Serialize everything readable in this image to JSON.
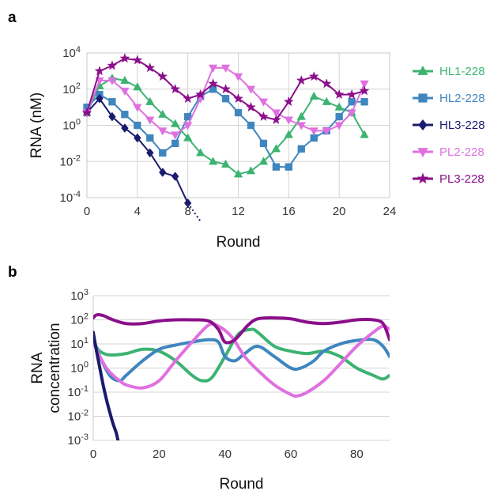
{
  "colors": {
    "HL1-228": "#3cb371",
    "HL2-228": "#3f86bf",
    "HL3-228": "#1a1a6e",
    "PL2-228": "#e070e0",
    "PL3-228": "#8b0f8b"
  },
  "chart_data": [
    {
      "panel": "a",
      "type": "line",
      "xlabel": "Round",
      "ylabel": "RNA (nM)",
      "xlim": [
        0,
        24
      ],
      "x_ticks": [
        "0",
        "4",
        "8",
        "12",
        "16",
        "20",
        "24"
      ],
      "y_scale": "log",
      "ylim": [
        0.0001,
        10000
      ],
      "y_ticks": [
        {
          "base": "10",
          "exp": "4"
        },
        {
          "base": "10",
          "exp": "2"
        },
        {
          "base": "10",
          "exp": "0"
        },
        {
          "base": "10",
          "exp": "-2"
        },
        {
          "base": "10",
          "exp": "-4"
        }
      ],
      "grid": true,
      "legend_position": "right",
      "series": [
        {
          "name": "HL1-228",
          "marker": "triangle-up",
          "x": [
            0,
            1,
            2,
            3,
            4,
            5,
            6,
            7,
            8,
            9,
            10,
            11,
            12,
            13,
            14,
            15,
            16,
            17,
            18,
            19,
            20,
            21,
            22
          ],
          "y": [
            5,
            150,
            400,
            300,
            130,
            20,
            4,
            1.2,
            0.2,
            0.03,
            0.01,
            0.007,
            0.002,
            0.003,
            0.01,
            0.05,
            0.3,
            3,
            40,
            20,
            10,
            5,
            0.3
          ]
        },
        {
          "name": "HL2-228",
          "marker": "square",
          "x": [
            0,
            1,
            2,
            3,
            4,
            5,
            6,
            7,
            8,
            9,
            10,
            11,
            12,
            13,
            14,
            15,
            16,
            17,
            18,
            19,
            20,
            21,
            22
          ],
          "y": [
            10,
            50,
            20,
            4,
            1,
            0.2,
            0.03,
            0.1,
            3,
            40,
            100,
            30,
            5,
            1,
            0.1,
            0.005,
            0.005,
            0.05,
            0.2,
            0.5,
            3,
            20,
            20
          ]
        },
        {
          "name": "HL3-228",
          "marker": "diamond",
          "x": [
            0,
            1,
            2,
            3,
            4,
            5,
            6,
            7,
            8
          ],
          "y": [
            5,
            30,
            3,
            0.7,
            0.2,
            0.03,
            0.0025,
            0.0015,
            5e-05
          ],
          "extrapolate_to": {
            "x": 9,
            "y": 5e-06
          }
        },
        {
          "name": "PL2-228",
          "marker": "triangle-down",
          "x": [
            0,
            1,
            2,
            3,
            4,
            5,
            6,
            7,
            8,
            9,
            10,
            11,
            12,
            13,
            14,
            15,
            16,
            17,
            18,
            19,
            20,
            21,
            22
          ],
          "y": [
            5,
            300,
            300,
            80,
            10,
            2,
            0.5,
            0.3,
            1,
            30,
            1500,
            1500,
            500,
            100,
            20,
            5,
            2,
            1,
            0.5,
            0.5,
            1,
            5,
            200
          ]
        },
        {
          "name": "PL3-228",
          "marker": "star",
          "x": [
            0,
            1,
            2,
            3,
            4,
            5,
            6,
            7,
            8,
            9,
            10,
            11,
            12,
            13,
            14,
            15,
            16,
            17,
            18,
            19,
            20,
            21,
            22
          ],
          "y": [
            5,
            1000,
            2000,
            5000,
            4000,
            1500,
            500,
            100,
            30,
            50,
            200,
            100,
            30,
            10,
            3,
            2,
            20,
            300,
            500,
            200,
            50,
            50,
            80
          ]
        }
      ]
    },
    {
      "panel": "b",
      "type": "line",
      "xlabel": "Round",
      "ylabel": "RNA concentration",
      "ylabel_lines": [
        "RNA",
        "concentration"
      ],
      "xlim": [
        0,
        90
      ],
      "x_ticks": [
        "0",
        "20",
        "40",
        "60",
        "80"
      ],
      "y_scale": "log",
      "ylim": [
        0.001,
        1000
      ],
      "y_ticks": [
        {
          "base": "10",
          "exp": "3"
        },
        {
          "base": "10",
          "exp": "2"
        },
        {
          "base": "10",
          "exp": "1"
        },
        {
          "base": "10",
          "exp": "0"
        },
        {
          "base": "10",
          "exp": "-1"
        },
        {
          "base": "10",
          "exp": "-2"
        },
        {
          "base": "10",
          "exp": "-3"
        }
      ],
      "grid": true,
      "series": [
        {
          "legend_key": "HL1-228",
          "x": [
            0,
            2,
            5,
            10,
            15,
            20,
            25,
            30,
            33,
            36,
            40,
            44,
            48,
            50,
            55,
            60,
            65,
            70,
            75,
            80,
            85,
            88,
            90
          ],
          "y": [
            12,
            5,
            3.5,
            4,
            6,
            5,
            2,
            0.5,
            0.3,
            0.4,
            3,
            25,
            40,
            30,
            8,
            5,
            4,
            5,
            3,
            1,
            0.5,
            0.35,
            0.5
          ]
        },
        {
          "legend_key": "HL2-228",
          "x": [
            0,
            2,
            5,
            8,
            10,
            15,
            20,
            25,
            30,
            35,
            38,
            40,
            43,
            46,
            50,
            55,
            60,
            63,
            67,
            70,
            75,
            80,
            85,
            88,
            90
          ],
          "y": [
            15,
            3,
            0.5,
            0.3,
            0.5,
            2,
            6,
            9,
            12,
            15,
            12,
            3,
            2,
            4,
            8,
            3,
            1,
            1,
            2,
            5,
            10,
            14,
            15,
            8,
            3
          ]
        },
        {
          "legend_key": "HL3-228",
          "x": [
            0,
            1,
            2,
            3,
            4,
            5,
            6,
            7,
            7.5
          ],
          "y": [
            30,
            5,
            1,
            0.2,
            0.05,
            0.015,
            0.005,
            0.002,
            0.001
          ]
        },
        {
          "legend_key": "PL2-228",
          "x": [
            0,
            2,
            4,
            6,
            8,
            10,
            15,
            20,
            25,
            30,
            35,
            38,
            42,
            46,
            50,
            55,
            60,
            62,
            65,
            70,
            75,
            80,
            85,
            88,
            90
          ],
          "y": [
            12,
            3,
            1,
            0.5,
            0.3,
            0.2,
            0.15,
            0.3,
            2,
            12,
            60,
            55,
            20,
            3,
            0.8,
            0.2,
            0.08,
            0.07,
            0.1,
            0.3,
            1.5,
            8,
            30,
            55,
            40
          ]
        },
        {
          "legend_key": "PL3-228",
          "x": [
            0,
            1,
            3,
            6,
            10,
            15,
            20,
            25,
            30,
            35,
            38,
            40,
            43,
            47,
            50,
            55,
            60,
            65,
            70,
            75,
            80,
            85,
            88,
            90
          ],
          "y": [
            120,
            160,
            150,
            100,
            70,
            70,
            90,
            100,
            100,
            90,
            40,
            12,
            15,
            60,
            110,
            120,
            110,
            80,
            70,
            80,
            100,
            100,
            70,
            15
          ]
        }
      ]
    }
  ]
}
